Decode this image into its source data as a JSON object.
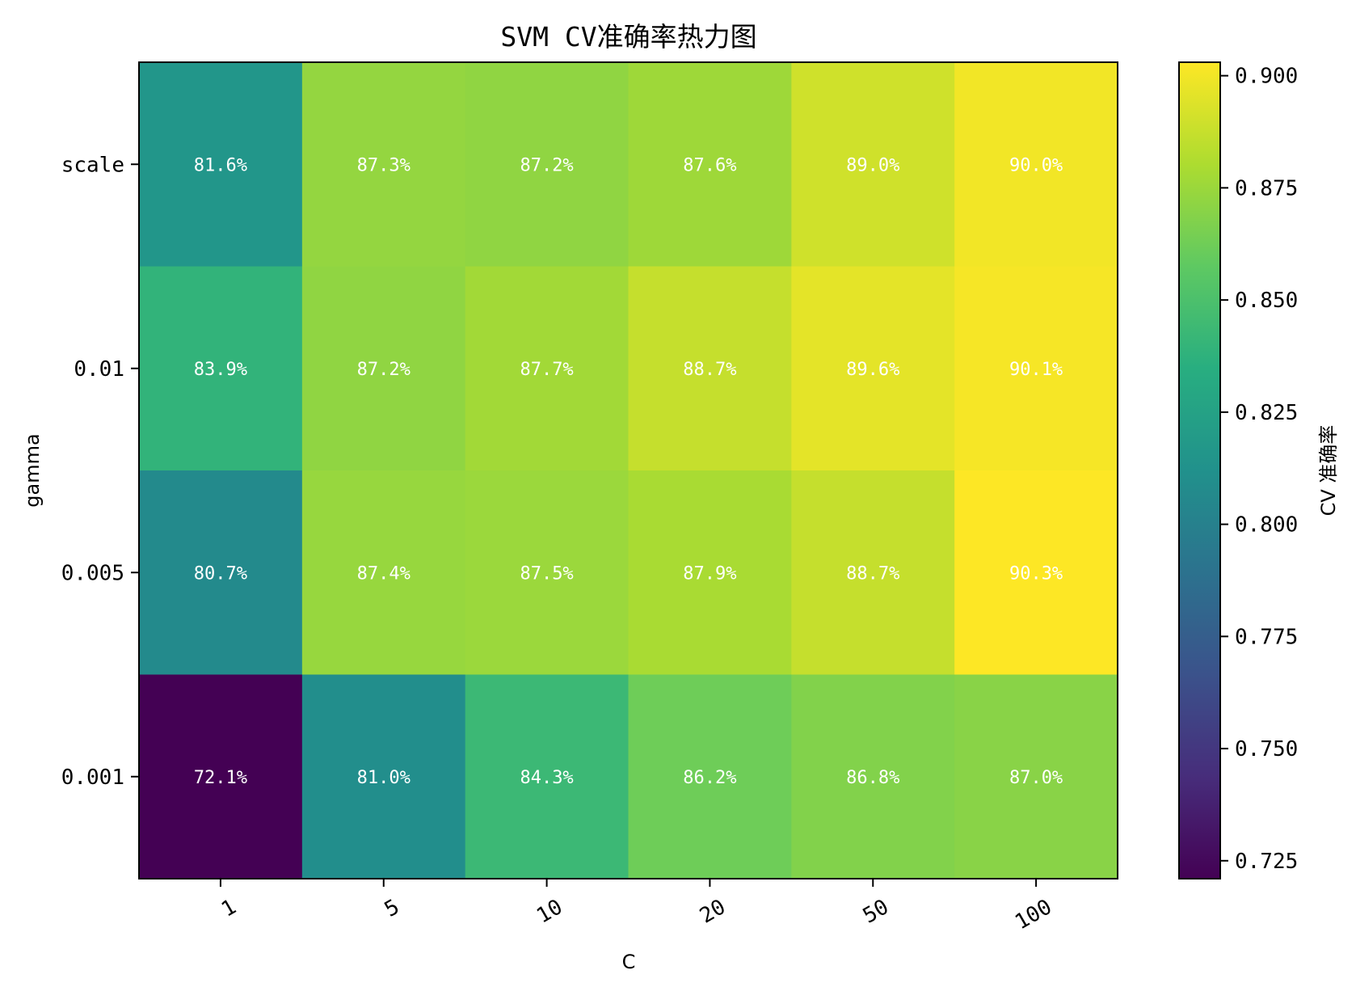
{
  "chart_data": {
    "type": "heatmap",
    "title": "SVM CV准确率热力图",
    "xlabel": "C",
    "ylabel": "gamma",
    "x_categories": [
      "1",
      "5",
      "10",
      "20",
      "50",
      "100"
    ],
    "y_categories": [
      "scale",
      "0.01",
      "0.005",
      "0.001"
    ],
    "values": [
      [
        0.816,
        0.873,
        0.872,
        0.876,
        0.89,
        0.9
      ],
      [
        0.839,
        0.872,
        0.877,
        0.887,
        0.896,
        0.901
      ],
      [
        0.807,
        0.874,
        0.875,
        0.879,
        0.887,
        0.903
      ],
      [
        0.721,
        0.81,
        0.843,
        0.862,
        0.868,
        0.87
      ]
    ],
    "cell_labels": [
      [
        "81.6%",
        "87.3%",
        "87.2%",
        "87.6%",
        "89.0%",
        "90.0%"
      ],
      [
        "83.9%",
        "87.2%",
        "87.7%",
        "88.7%",
        "89.6%",
        "90.1%"
      ],
      [
        "80.7%",
        "87.4%",
        "87.5%",
        "87.9%",
        "88.7%",
        "90.3%"
      ],
      [
        "72.1%",
        "81.0%",
        "84.3%",
        "86.2%",
        "86.8%",
        "87.0%"
      ]
    ],
    "colormap": "viridis",
    "vmin": 0.721,
    "vmax": 0.903,
    "colorbar": {
      "label": "CV 准确率",
      "ticks": [
        0.725,
        0.75,
        0.775,
        0.8,
        0.825,
        0.85,
        0.875,
        0.9
      ],
      "tick_labels": [
        "0.725",
        "0.750",
        "0.775",
        "0.800",
        "0.825",
        "0.850",
        "0.875",
        "0.900"
      ],
      "placement": "right"
    },
    "grid": false
  }
}
